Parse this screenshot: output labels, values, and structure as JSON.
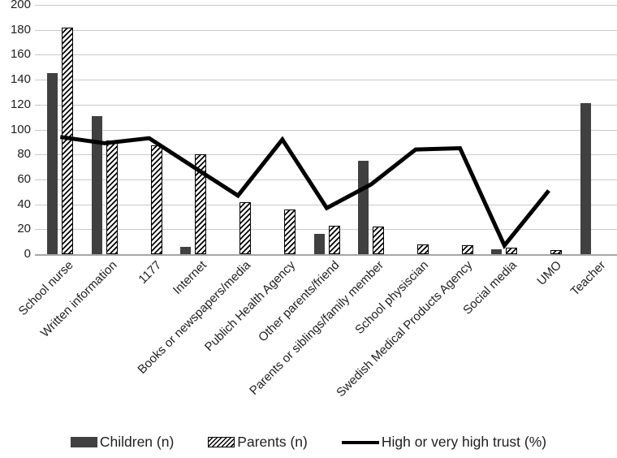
{
  "chart_data": {
    "type": "bar",
    "subtype": "grouped-bars-with-line-overlay",
    "title": "",
    "xlabel": "",
    "ylabel": "",
    "ylim": [
      0,
      200
    ],
    "yticks": [
      0,
      20,
      40,
      60,
      80,
      100,
      120,
      140,
      160,
      180,
      200
    ],
    "grid": true,
    "legend_position": "bottom",
    "categories": [
      "School nurse",
      "Written information",
      "1177",
      "Internet",
      "Books or newspapers/media",
      "Publich Health Agency",
      "Other parents/friend",
      "Parents or siblings/family member",
      "School physiscian",
      "Swedish Medical Products Agency",
      "Social media",
      "UMO",
      "Teacher"
    ],
    "series": [
      {
        "name": "Children (n)",
        "type": "bar",
        "style": "solid",
        "color": "#404040",
        "values": [
          145,
          111,
          null,
          6,
          null,
          null,
          16,
          75,
          null,
          null,
          4,
          null,
          121
        ]
      },
      {
        "name": "Parents (n)",
        "type": "bar",
        "style": "hatched",
        "color": "#000000",
        "values": [
          182,
          91,
          87,
          80,
          42,
          36,
          23,
          22,
          8,
          7,
          5,
          3,
          null
        ]
      },
      {
        "name": "High or very high trust (%)",
        "type": "line",
        "color": "#000000",
        "values": [
          94,
          89,
          93,
          70,
          47,
          92,
          37,
          56,
          84,
          85,
          7,
          51,
          null
        ]
      }
    ]
  },
  "colors": {
    "background": "#ffffff",
    "gridline": "#c9c9c9",
    "axis": "#a6a6a6",
    "text": "#1f1f1f",
    "children_bar": "#404040",
    "trust_line": "#000000"
  }
}
